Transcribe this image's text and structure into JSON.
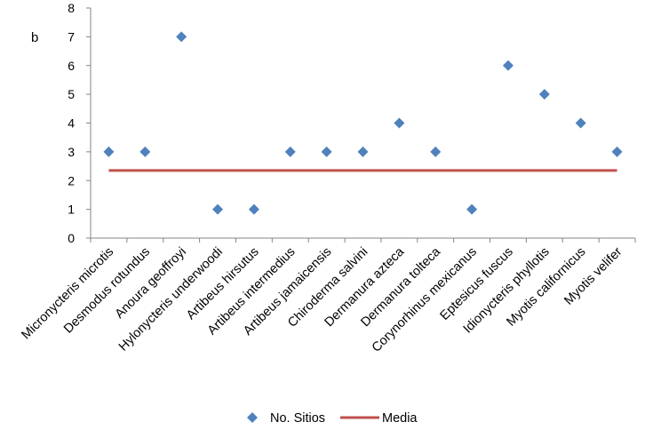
{
  "chart_data": {
    "type": "scatter",
    "panel_label": "b",
    "categories": [
      "Micronycteris microtis",
      "Desmodus rotundus",
      "Anoura geoffroyi",
      "Hylonycteris underwoodi",
      "Artibeus hirsutus",
      "Artibeus intermedius",
      "Artibeus jamaicensis",
      "Chiroderma salvini",
      "Dermanura azteca",
      "Dermanura tolteca",
      "Corynorhinus mexicanus",
      "Eptesicus fuscus",
      "Idionycteris phyllotis",
      "Myotis californicus",
      "Myotis velifer"
    ],
    "series": [
      {
        "name": "No. Sitios",
        "marker": "diamond",
        "color": "#4f81bd",
        "values": [
          3,
          3,
          7,
          1,
          1,
          3,
          3,
          3,
          4,
          3,
          1,
          6,
          5,
          4,
          3
        ]
      },
      {
        "name": "Media",
        "marker": "line",
        "color": "#c0504d",
        "value": 2.35
      }
    ],
    "ylim": [
      0,
      8
    ],
    "yticks": [
      "0",
      "1",
      "2",
      "3",
      "4",
      "5",
      "6",
      "7",
      "8"
    ],
    "grid": false,
    "legend_position": "bottom"
  }
}
